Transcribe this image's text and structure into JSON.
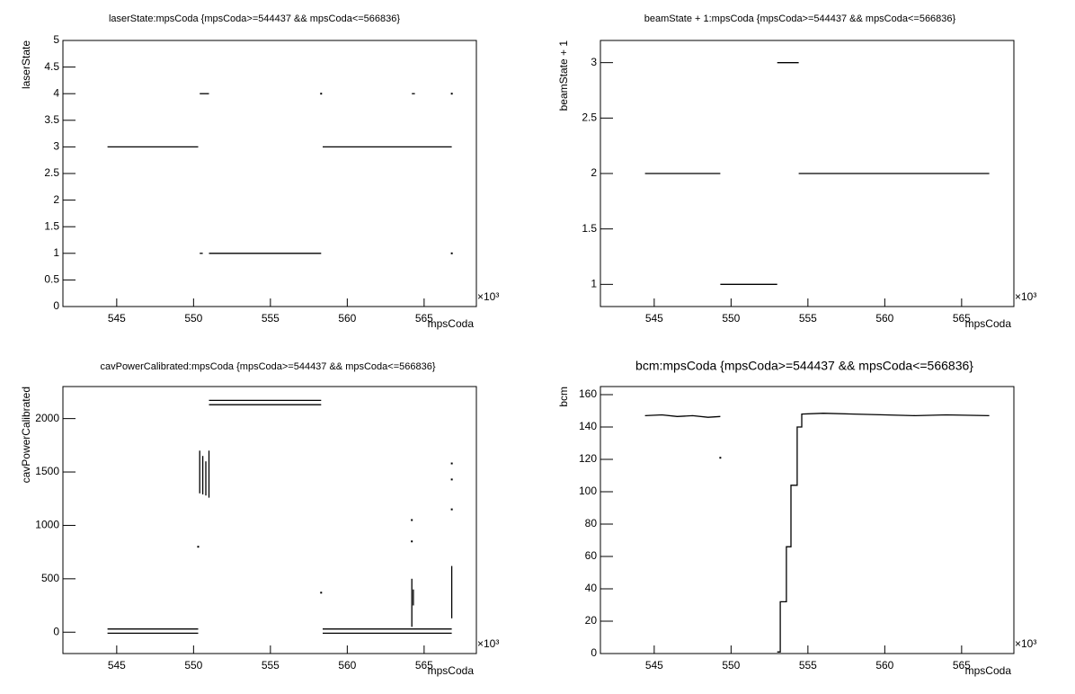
{
  "chart_data": [
    {
      "type": "scatter",
      "title": "laserState:mpsCoda {mpsCoda>=544437 && mpsCoda<=566836}",
      "x_label": "mpsCoda",
      "y_label": "laserState",
      "x_multiplier": "×10³",
      "xlim": [
        541.5,
        568.4
      ],
      "xticks": [
        545,
        550,
        555,
        560,
        565
      ],
      "ylim": [
        0,
        5
      ],
      "yticks": [
        0,
        0.5,
        1,
        1.5,
        2,
        2.5,
        3,
        3.5,
        4,
        4.5,
        5
      ],
      "series": [
        {
          "color": "#000000",
          "x": [
            544.4,
            550.3,
            null,
            550.4,
            551.0,
            null,
            550.4,
            550.6,
            null,
            551.0,
            558.3,
            null,
            558.4,
            566.8,
            null,
            564.2,
            564.4,
            null,
            558.3,
            null,
            566.8,
            null,
            566.8
          ],
          "values": [
            3,
            3,
            null,
            4,
            4,
            null,
            1,
            1,
            null,
            1,
            1,
            null,
            3,
            3,
            null,
            4,
            4,
            null,
            4,
            null,
            4,
            null,
            1
          ]
        }
      ]
    },
    {
      "type": "scatter",
      "title": "beamState + 1:mpsCoda {mpsCoda>=544437 && mpsCoda<=566836}",
      "x_label": "mpsCoda",
      "y_label": "beamState + 1",
      "x_multiplier": "×10³",
      "xlim": [
        541.5,
        568.4
      ],
      "xticks": [
        545,
        550,
        555,
        560,
        565
      ],
      "ylim": [
        0.8,
        3.2
      ],
      "yticks": [
        1,
        1.5,
        2,
        2.5,
        3
      ],
      "series": [
        {
          "color": "#000000",
          "x": [
            544.4,
            549.3,
            null,
            549.3,
            553.0,
            null,
            553.0,
            554.4,
            null,
            554.4,
            566.8
          ],
          "values": [
            2,
            2,
            null,
            1,
            1,
            null,
            3,
            3,
            null,
            2,
            2
          ]
        }
      ]
    },
    {
      "type": "scatter",
      "title": "cavPowerCalibrated:mpsCoda {mpsCoda>=544437 && mpsCoda<=566836}",
      "x_label": "mpsCoda",
      "y_label": "cavPowerCalibrated",
      "x_multiplier": "×10³",
      "xlim": [
        541.5,
        568.4
      ],
      "xticks": [
        545,
        550,
        555,
        560,
        565
      ],
      "ylim": [
        -200,
        2300
      ],
      "yticks": [
        0,
        500,
        1000,
        1500,
        2000
      ],
      "series": [
        {
          "color": "#000000",
          "x": [
            544.4,
            550.3,
            null,
            544.4,
            550.3,
            null,
            551.0,
            558.3,
            null,
            551.0,
            558.3,
            null,
            558.4,
            566.8,
            null,
            558.4,
            566.8,
            null,
            550.4,
            550.4,
            null,
            550.6,
            550.6,
            null,
            550.8,
            550.8,
            null,
            551.0,
            551.0,
            null,
            550.3,
            null,
            558.3,
            null,
            564.2,
            564.2,
            null,
            564.3,
            564.3,
            null,
            564.2,
            null,
            564.2,
            null,
            566.8,
            566.8,
            null,
            566.8,
            null,
            566.8,
            null,
            566.8
          ],
          "values": [
            30,
            30,
            null,
            -10,
            -10,
            null,
            2170,
            2170,
            null,
            2130,
            2130,
            null,
            30,
            30,
            null,
            -10,
            -10,
            null,
            1300,
            1700,
            null,
            1290,
            1650,
            null,
            1280,
            1600,
            null,
            1260,
            1700,
            null,
            800,
            null,
            370,
            null,
            50,
            500,
            null,
            250,
            400,
            null,
            850,
            null,
            1050,
            null,
            130,
            620,
            null,
            1150,
            null,
            1430,
            null,
            1580
          ]
        }
      ]
    },
    {
      "type": "scatter",
      "title": "bcm:mpsCoda {mpsCoda>=544437 && mpsCoda<=566836}",
      "x_label": "mpsCoda",
      "y_label": "bcm",
      "x_multiplier": "×10³",
      "xlim": [
        541.5,
        568.4
      ],
      "xticks": [
        545,
        550,
        555,
        560,
        565
      ],
      "ylim": [
        0,
        165
      ],
      "yticks": [
        0,
        20,
        40,
        60,
        80,
        100,
        120,
        140,
        160
      ],
      "series": [
        {
          "color": "#000000",
          "x": [
            544.4,
            545.5,
            546.5,
            547.5,
            548.5,
            549.3,
            null,
            549.3,
            null,
            553.0,
            553.2,
            553.2,
            553.6,
            553.6,
            553.9,
            553.9,
            554.3,
            554.3,
            554.6,
            554.6,
            556,
            558,
            560,
            562,
            564,
            566.8
          ],
          "values": [
            147,
            147.5,
            146.5,
            147,
            146,
            146.5,
            null,
            121,
            null,
            1,
            1,
            32,
            32,
            66,
            66,
            104,
            104,
            140,
            140,
            148,
            148.5,
            148,
            147.5,
            147,
            147.5,
            147
          ]
        }
      ]
    }
  ]
}
